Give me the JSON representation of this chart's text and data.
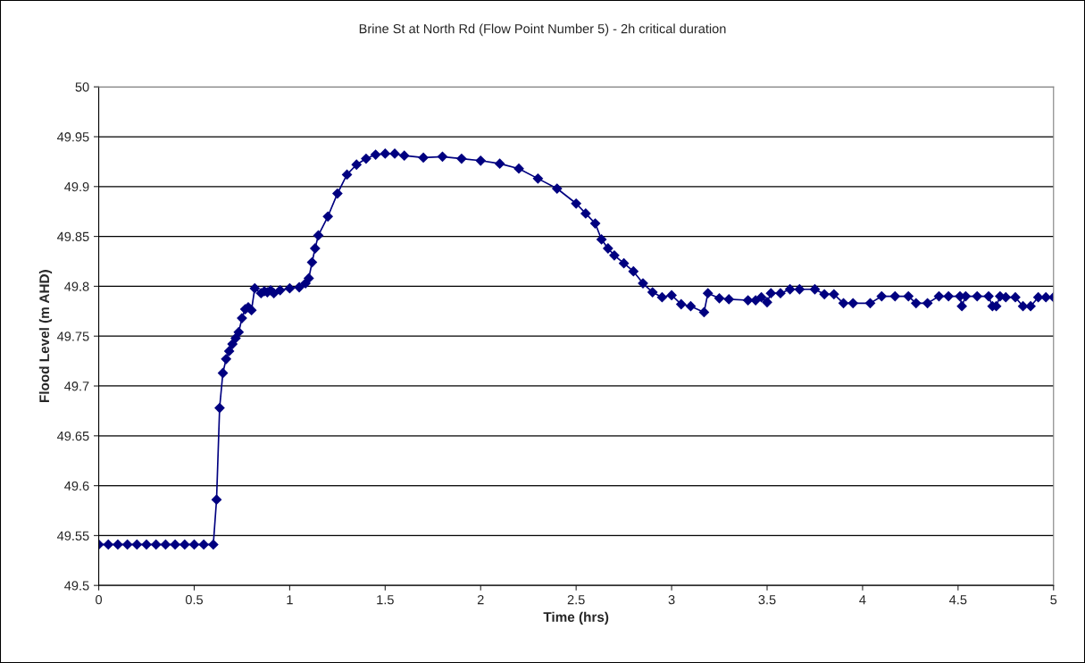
{
  "chart_data": {
    "type": "line",
    "title": "Brine St at North Rd (Flow Point Number 5) - 2h critical duration",
    "xlabel": "Time (hrs)",
    "ylabel": "Flood Level (m AHD)",
    "xlim": [
      0,
      5
    ],
    "xticks": [
      0,
      0.5,
      1,
      1.5,
      2,
      2.5,
      3,
      3.5,
      4,
      4.5,
      5
    ],
    "ylim": [
      49.5,
      50
    ],
    "yticks": [
      49.5,
      49.55,
      49.6,
      49.65,
      49.7,
      49.75,
      49.8,
      49.85,
      49.9,
      49.95,
      50
    ],
    "grid": "y",
    "marker": "diamond",
    "line_style": "solid",
    "series": [
      {
        "color": "#000080",
        "x": [
          0,
          0.05,
          0.1,
          0.15,
          0.2,
          0.25,
          0.3,
          0.35,
          0.4,
          0.45,
          0.5,
          0.55,
          0.6,
          0.617,
          0.633,
          0.65,
          0.667,
          0.683,
          0.7,
          0.717,
          0.733,
          0.75,
          0.767,
          0.783,
          0.8,
          0.817,
          0.85,
          0.867,
          0.883,
          0.9,
          0.917,
          0.95,
          1.0,
          1.05,
          1.083,
          1.1,
          1.117,
          1.133,
          1.15,
          1.2,
          1.25,
          1.3,
          1.35,
          1.4,
          1.45,
          1.5,
          1.55,
          1.6,
          1.7,
          1.8,
          1.9,
          2.0,
          2.1,
          2.2,
          2.3,
          2.4,
          2.5,
          2.55,
          2.6,
          2.633,
          2.667,
          2.7,
          2.75,
          2.8,
          2.85,
          2.9,
          2.95,
          3.0,
          3.05,
          3.1,
          3.17,
          3.19,
          3.25,
          3.3,
          3.4,
          3.44,
          3.47,
          3.5,
          3.52,
          3.57,
          3.62,
          3.67,
          3.75,
          3.8,
          3.85,
          3.9,
          3.95,
          4.04,
          4.1,
          4.17,
          4.24,
          4.28,
          4.34,
          4.4,
          4.45,
          4.51,
          4.52,
          4.54,
          4.6,
          4.66,
          4.68,
          4.7,
          4.72,
          4.75,
          4.8,
          4.84,
          4.88,
          4.92,
          4.96,
          5.0
        ],
        "values": [
          49.541,
          49.541,
          49.541,
          49.541,
          49.541,
          49.541,
          49.541,
          49.541,
          49.541,
          49.541,
          49.541,
          49.541,
          49.541,
          49.586,
          49.678,
          49.713,
          49.727,
          49.735,
          49.742,
          49.748,
          49.754,
          49.768,
          49.777,
          49.779,
          49.776,
          49.798,
          49.793,
          49.795,
          49.794,
          49.796,
          49.793,
          49.796,
          49.798,
          49.799,
          49.803,
          49.808,
          49.824,
          49.838,
          49.851,
          49.87,
          49.893,
          49.912,
          49.922,
          49.928,
          49.932,
          49.933,
          49.933,
          49.931,
          49.929,
          49.93,
          49.928,
          49.926,
          49.923,
          49.918,
          49.908,
          49.898,
          49.883,
          49.873,
          49.863,
          49.847,
          49.838,
          49.831,
          49.823,
          49.815,
          49.803,
          49.794,
          49.789,
          49.791,
          49.782,
          49.78,
          49.774,
          49.793,
          49.788,
          49.787,
          49.786,
          49.786,
          49.789,
          49.784,
          49.793,
          49.793,
          49.797,
          49.797,
          49.797,
          49.792,
          49.792,
          49.783,
          49.783,
          49.783,
          49.79,
          49.79,
          49.79,
          49.783,
          49.783,
          49.79,
          49.79,
          49.79,
          49.78,
          49.79,
          49.79,
          49.79,
          49.78,
          49.78,
          49.79,
          49.789,
          49.789,
          49.78,
          49.78,
          49.789,
          49.789,
          49.789
        ]
      }
    ]
  }
}
